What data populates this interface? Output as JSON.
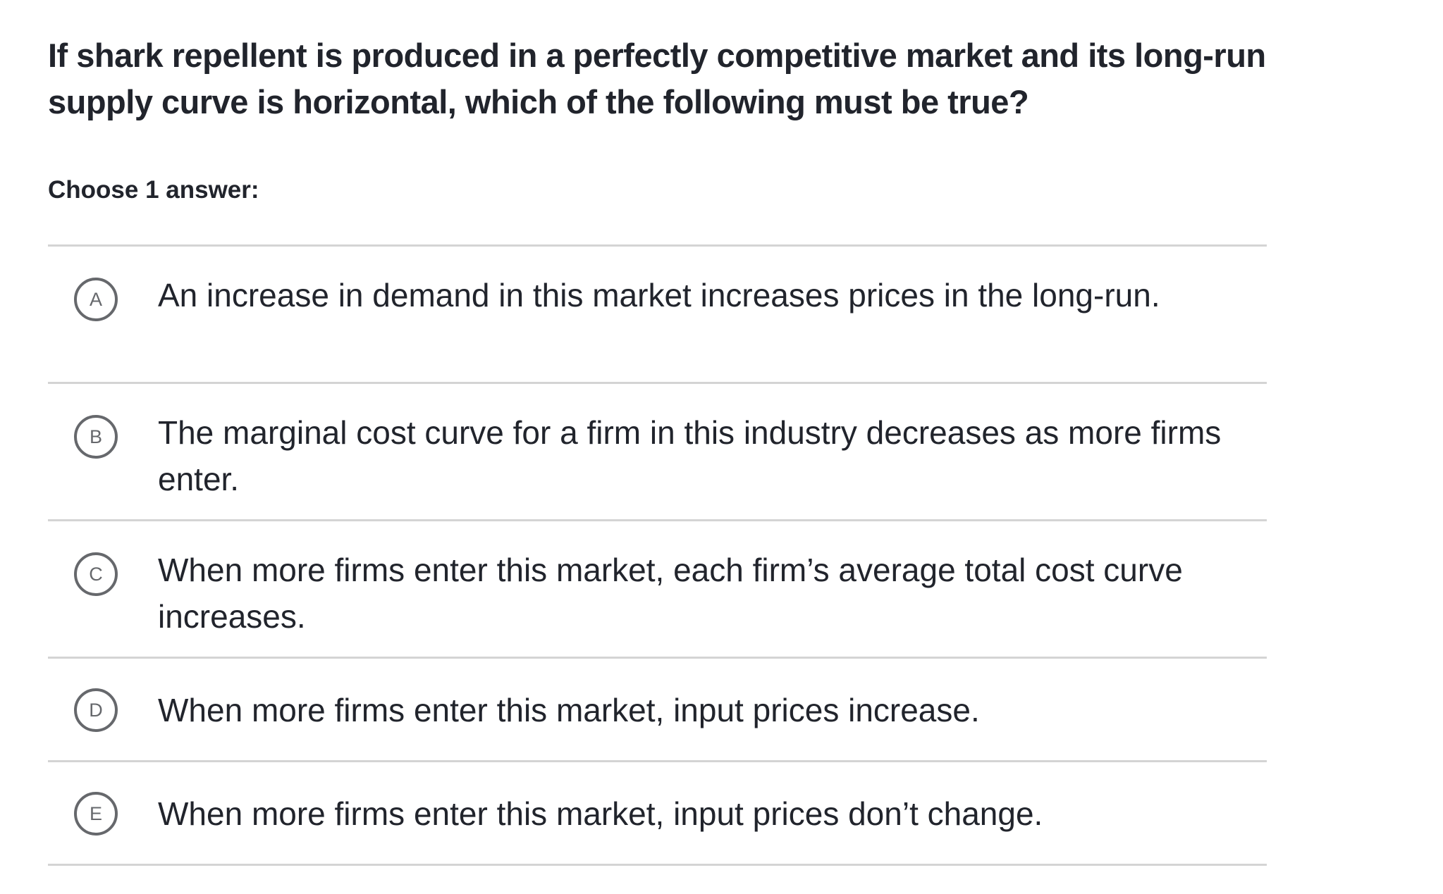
{
  "question": "If shark repellent is produced in a perfectly competitive market and its long-run supply curve is horizontal, which of the following must be true?",
  "instruction": "Choose 1 answer:",
  "options": [
    {
      "letter": "A",
      "text": "An increase in demand in this market increases prices in the long-run."
    },
    {
      "letter": "B",
      "text": "The marginal cost curve for a firm in this industry decreases as more firms enter."
    },
    {
      "letter": "C",
      "text": "When more firms enter this market, each firm’s average total cost curve increases."
    },
    {
      "letter": "D",
      "text": "When more firms enter this market, input prices increase."
    },
    {
      "letter": "E",
      "text": "When more firms enter this market, input prices don’t change."
    }
  ]
}
